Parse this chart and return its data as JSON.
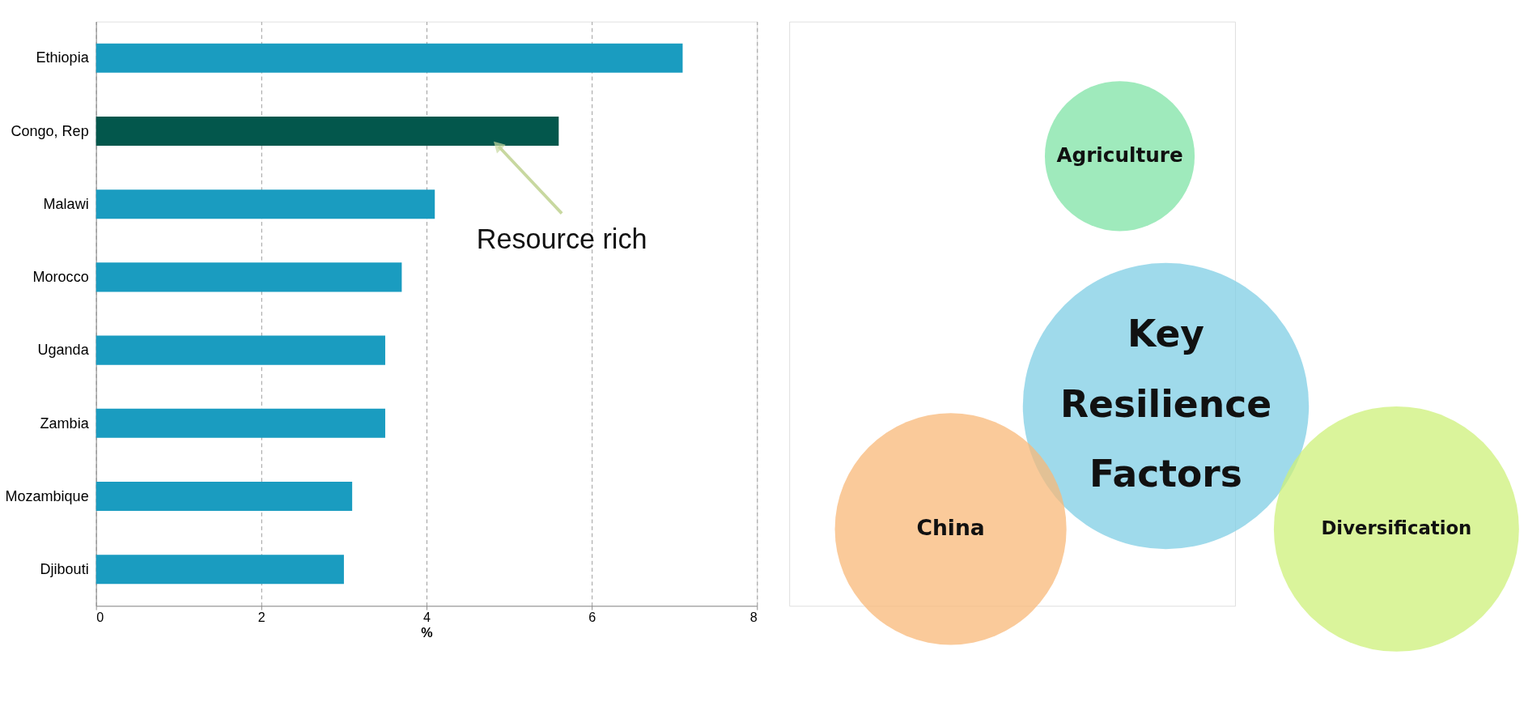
{
  "chart_data": [
    {
      "type": "bar",
      "orientation": "horizontal",
      "xlabel": "%",
      "categories": [
        "Ethiopia",
        "Congo, Rep",
        "Malawi",
        "Morocco",
        "Uganda",
        "Zambia",
        "Mozambique",
        "Djibouti"
      ],
      "values": [
        7.1,
        5.6,
        4.1,
        3.7,
        3.5,
        3.5,
        3.1,
        3.0
      ],
      "colors": [
        "#1a9cc0",
        "#03574c",
        "#1a9cc0",
        "#1a9cc0",
        "#1a9cc0",
        "#1a9cc0",
        "#1a9cc0",
        "#1a9cc0"
      ],
      "xlim": [
        0,
        8
      ],
      "xticks": [
        0,
        2,
        4,
        6,
        8
      ],
      "grid": "x",
      "legend": false,
      "annotations": [
        "Resource rich"
      ]
    },
    {
      "type": "other",
      "annotations": [
        "Agriculture",
        "Key Resilience Factors",
        "China",
        "Diversification"
      ]
    }
  ]
}
